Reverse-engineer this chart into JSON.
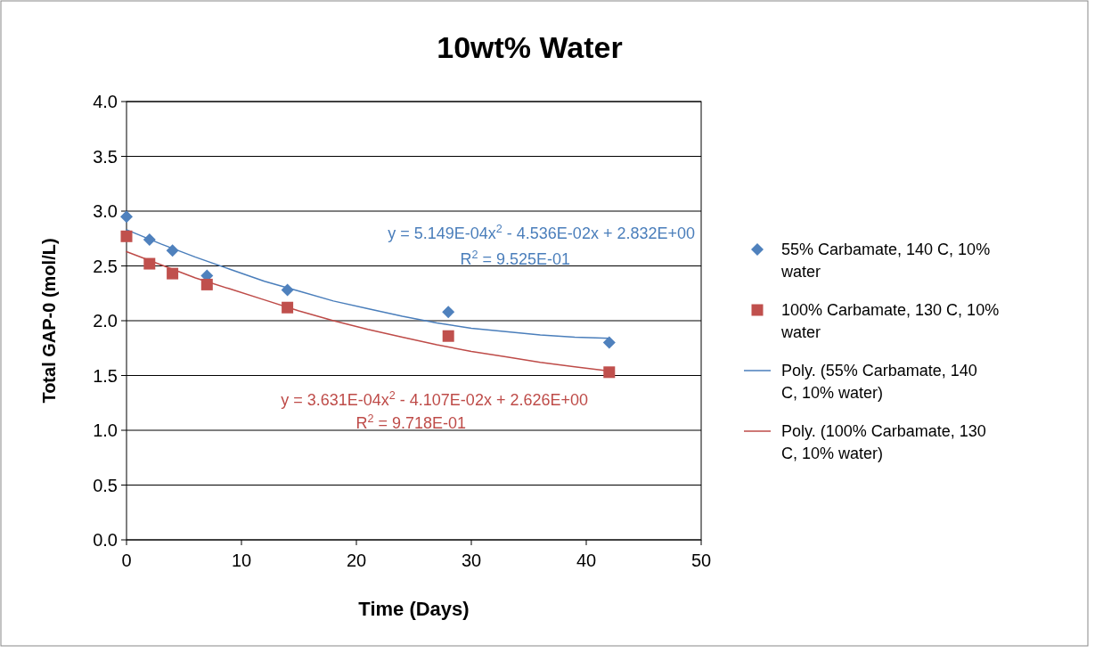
{
  "chart_data": {
    "type": "scatter",
    "title": "10wt% Water",
    "xlabel": "Time (Days)",
    "ylabel": "Total GAP-0 (mol/L)",
    "xlim": [
      0,
      50
    ],
    "xticks": [
      0,
      10,
      20,
      30,
      40,
      50
    ],
    "ylim": [
      0,
      4
    ],
    "yticks": [
      {
        "value": 0,
        "label": "0.0"
      },
      {
        "value": 0.5,
        "label": "0.5"
      },
      {
        "value": 1,
        "label": "1.0"
      },
      {
        "value": 1.5,
        "label": "1.5"
      },
      {
        "value": 2,
        "label": "2.0"
      },
      {
        "value": 2.5,
        "label": "2.5"
      },
      {
        "value": 3,
        "label": "3.0"
      },
      {
        "value": 3.5,
        "label": "3.5"
      },
      {
        "value": 4,
        "label": "4.0"
      }
    ],
    "grid": "y",
    "legend": "right",
    "series": [
      {
        "name": "55% Carbamate, 140 C, 10% water",
        "type": "scatter",
        "marker": "diamond",
        "color": "#4f81bd",
        "x": [
          0,
          2,
          4,
          7,
          14,
          28,
          42
        ],
        "values": [
          2.95,
          2.74,
          2.64,
          2.41,
          2.28,
          2.08,
          1.8
        ]
      },
      {
        "name": "100% Carbamate, 130 C, 10% water",
        "type": "scatter",
        "marker": "square",
        "color": "#c0504d",
        "x": [
          0,
          2,
          4,
          7,
          14,
          28,
          42
        ],
        "values": [
          2.77,
          2.52,
          2.43,
          2.33,
          2.12,
          1.86,
          1.53
        ]
      },
      {
        "name": "Poly. (55% Carbamate, 140 C, 10% water)",
        "type": "line",
        "marker": "none",
        "line_style": "solid",
        "color": "#4a7ebb",
        "x": [
          0,
          3,
          6,
          9,
          12,
          15,
          18,
          21,
          24,
          27,
          30,
          33,
          36,
          39,
          42
        ],
        "values": [
          2.83,
          2.7,
          2.58,
          2.47,
          2.36,
          2.27,
          2.18,
          2.11,
          2.04,
          1.98,
          1.93,
          1.9,
          1.87,
          1.85,
          1.84
        ]
      },
      {
        "name": "Poly. (100% Carbamate, 130 C, 10% water)",
        "type": "line",
        "marker": "none",
        "line_style": "solid",
        "color": "#be4b48",
        "x": [
          0,
          3,
          6,
          9,
          12,
          15,
          18,
          21,
          24,
          27,
          30,
          33,
          36,
          39,
          42
        ],
        "values": [
          2.63,
          2.51,
          2.39,
          2.29,
          2.19,
          2.09,
          2.0,
          1.92,
          1.85,
          1.78,
          1.72,
          1.67,
          1.62,
          1.58,
          1.54
        ]
      }
    ],
    "annotations": [
      "y = 5.149E-04x$^{2}$ - 4.536E-02x + 2.832E+00",
      "R$^{2}$ = 9.525E-01",
      "y = 3.631E-04x$^{2}$ - 4.107E-02x + 2.626E+00",
      "R$^{2}$ = 9.718E-01"
    ]
  }
}
